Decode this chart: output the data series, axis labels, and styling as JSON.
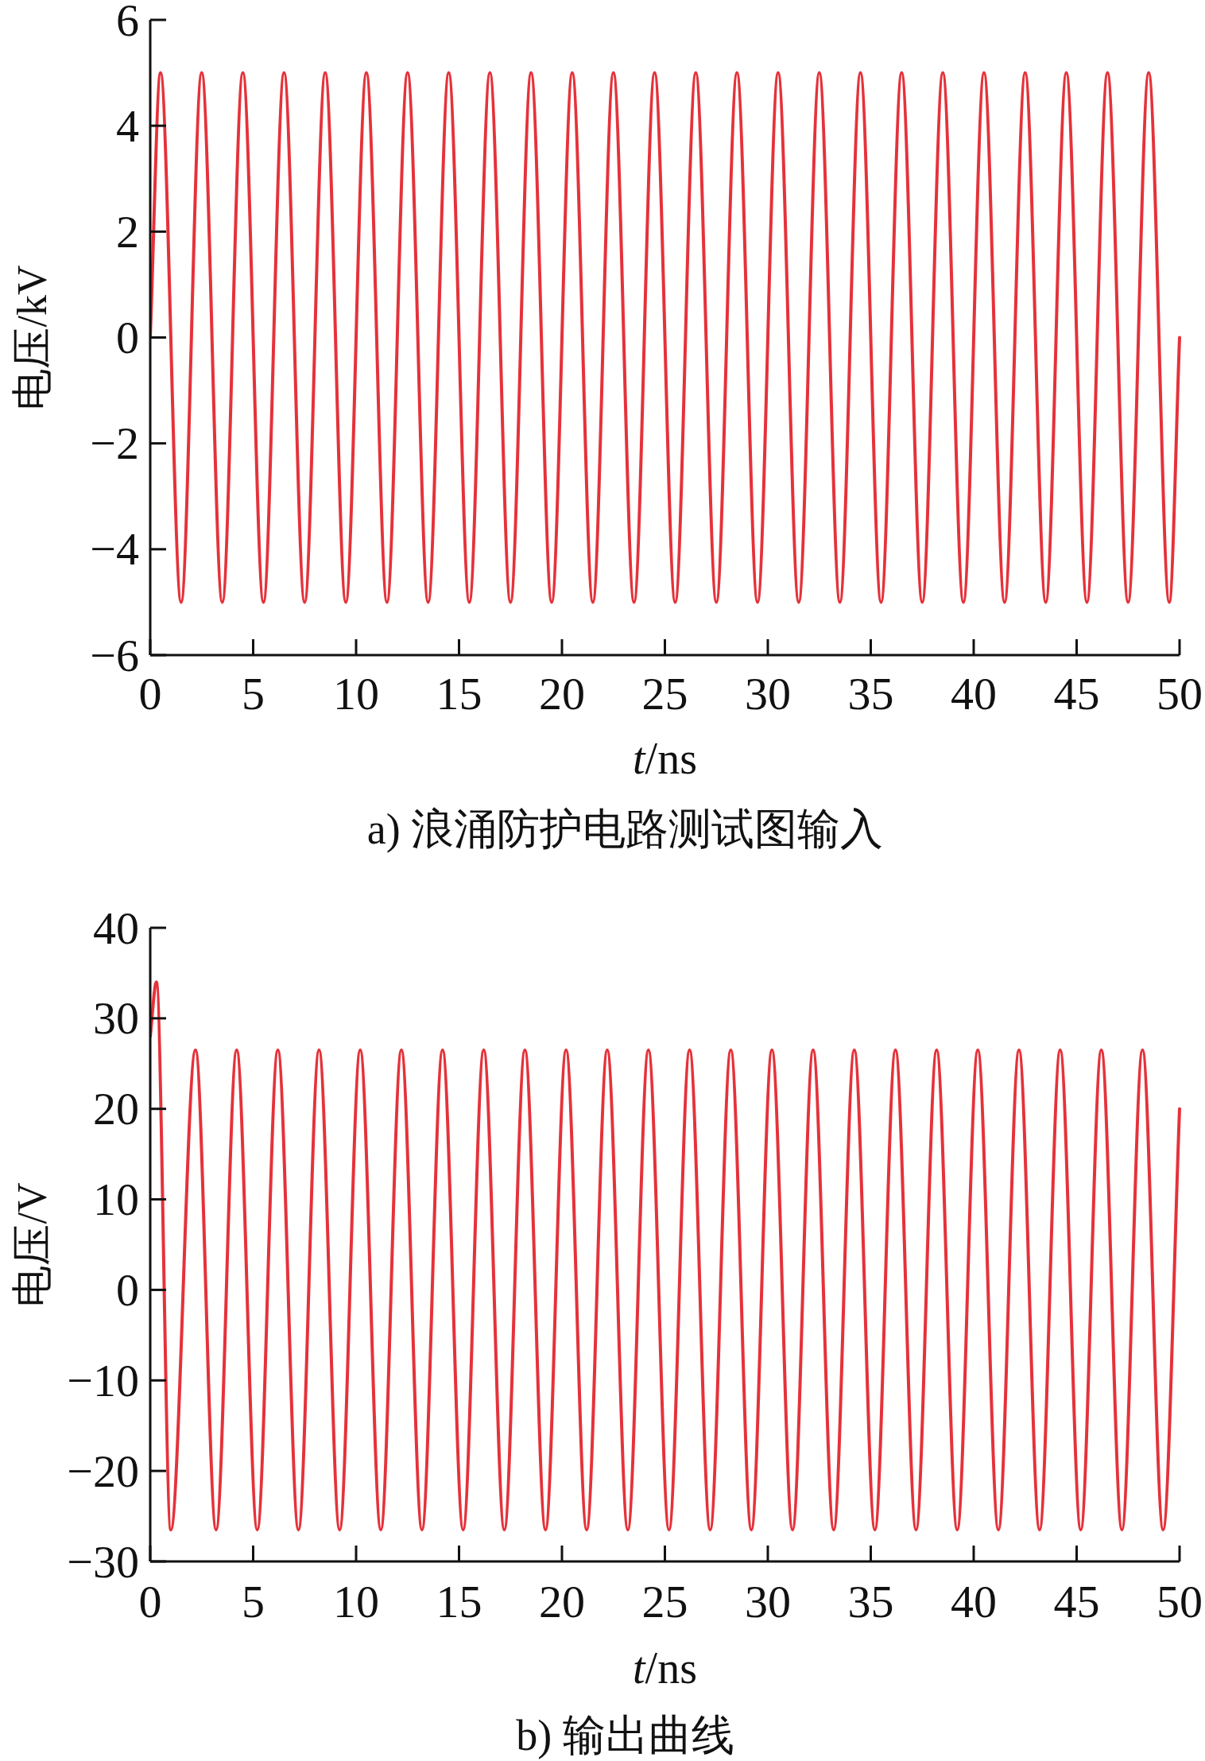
{
  "chart_data": [
    {
      "type": "line",
      "title": "a) 浪涌防护电路测试图输入",
      "xlabel": "t/ns",
      "ylabel": "电压/kV",
      "xlim": [
        0,
        50
      ],
      "xticks": [
        0,
        5,
        10,
        15,
        20,
        25,
        30,
        35,
        40,
        45,
        50
      ],
      "ylim": [
        -6,
        6
      ],
      "yticks": [
        -6,
        -4,
        -2,
        0,
        2,
        4,
        6
      ],
      "grid": false,
      "series": [
        {
          "color": "#e5323a",
          "x": [
            0,
            0.5,
            1.5,
            2.5,
            3.5,
            4.5,
            5.5,
            6.5,
            7.5,
            8.5,
            9.5,
            10.5,
            11.5,
            12.5,
            13.5,
            14.5,
            15.5,
            16.5,
            17.5,
            18.5,
            19.5,
            20.5,
            21.5,
            22.5,
            23.5,
            24.5,
            25.5,
            26.5,
            27.5,
            28.5,
            29.5,
            30.5,
            31.5,
            32.5,
            33.5,
            34.5,
            35.5,
            36.5,
            37.5,
            38.5,
            39.5,
            40.5,
            41.5,
            42.5,
            43.5,
            44.5,
            45.5,
            46.5,
            47.5,
            48.5,
            49.5,
            50
          ],
          "values": [
            0,
            5,
            -5,
            5,
            -5,
            5,
            -5,
            5,
            -5,
            5,
            -5,
            5,
            -5,
            5,
            -5,
            5,
            -5,
            5,
            -5,
            5,
            -5,
            5,
            -5,
            5,
            -5,
            5,
            -5,
            5,
            -5,
            5,
            -5,
            5,
            -5,
            5,
            -5,
            5,
            -5,
            5,
            -5,
            5,
            -5,
            5,
            -5,
            5,
            -5,
            5,
            -5,
            5,
            -5,
            5,
            -5,
            0
          ]
        }
      ]
    },
    {
      "type": "line",
      "title": "b) 输出曲线",
      "xlabel": "t/ns",
      "ylabel": "电压/V",
      "xlim": [
        0,
        50
      ],
      "xticks": [
        0,
        5,
        10,
        15,
        20,
        25,
        30,
        35,
        40,
        45,
        50
      ],
      "ylim": [
        -30,
        40
      ],
      "yticks": [
        -30,
        -20,
        -10,
        0,
        10,
        20,
        30,
        40
      ],
      "grid": false,
      "series": [
        {
          "color": "#e5323a",
          "x": [
            0,
            0.3,
            1,
            2.2,
            3.2,
            4.2,
            5.2,
            6.2,
            7.2,
            8.2,
            9.2,
            10.2,
            11.2,
            12.2,
            13.2,
            14.2,
            15.2,
            16.2,
            17.2,
            18.2,
            19.2,
            20.2,
            21.2,
            22.2,
            23.2,
            24.2,
            25.2,
            26.2,
            27.2,
            28.2,
            29.2,
            30.2,
            31.2,
            32.2,
            33.2,
            34.2,
            35.2,
            36.2,
            37.2,
            38.2,
            39.2,
            40.2,
            41.2,
            42.2,
            43.2,
            44.2,
            45.2,
            46.2,
            47.2,
            48.2,
            49.2,
            50
          ],
          "values": [
            28,
            34,
            -26.5,
            26.5,
            -26.5,
            26.5,
            -26.5,
            26.5,
            -26.5,
            26.5,
            -26.5,
            26.5,
            -26.5,
            26.5,
            -26.5,
            26.5,
            -26.5,
            26.5,
            -26.5,
            26.5,
            -26.5,
            26.5,
            -26.5,
            26.5,
            -26.5,
            26.5,
            -26.5,
            26.5,
            -26.5,
            26.5,
            -26.5,
            26.5,
            -26.5,
            26.5,
            -26.5,
            26.5,
            -26.5,
            26.5,
            -26.5,
            26.5,
            -26.5,
            26.5,
            -26.5,
            26.5,
            -26.5,
            26.5,
            -26.5,
            26.5,
            -26.5,
            26.5,
            -26.5,
            20
          ]
        }
      ]
    }
  ]
}
